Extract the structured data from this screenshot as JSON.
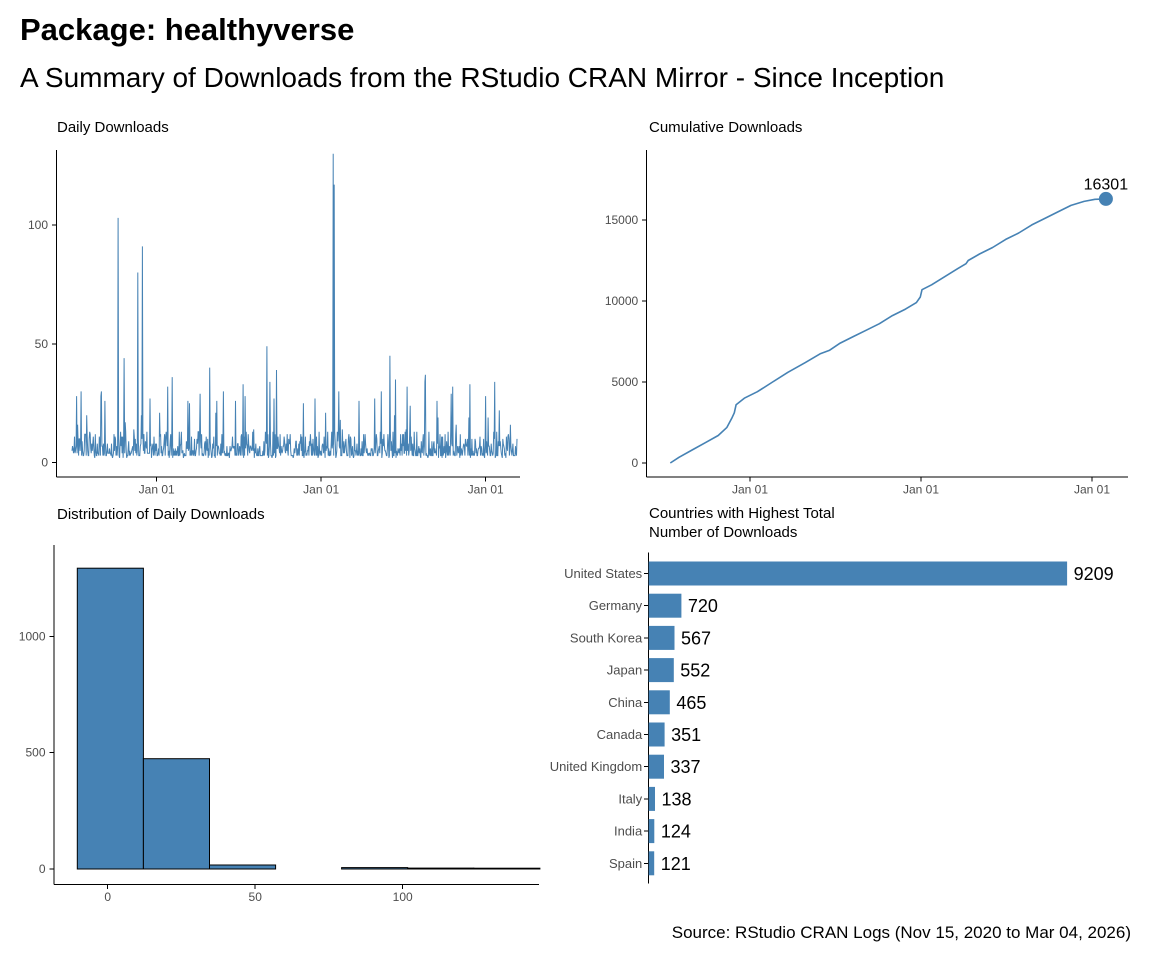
{
  "page": {
    "title": "Package: healthyverse",
    "subtitle": "A Summary of Downloads from the RStudio CRAN Mirror - Since Inception",
    "caption": "Source: RStudio CRAN Logs (Nov 15, 2020 to Mar 04, 2026)",
    "accent_color": "#4682B4",
    "axis_color": "#000000",
    "tick_label_color": "#4d4d4d"
  },
  "chart_data": [
    {
      "id": "daily",
      "type": "line",
      "title": "Daily Downloads",
      "x_tick_labels": [
        "Jan 01",
        "Jan 01",
        "Jan 01"
      ],
      "y_tick_labels": [
        "0",
        "50",
        "100"
      ],
      "y_tick_values": [
        0,
        50,
        100
      ],
      "ylim": [
        0,
        132
      ],
      "series_generator": {
        "n": 880,
        "seed": 42,
        "base_min": 1,
        "typical_range": [
          2,
          16
        ],
        "burst_chance": 0.045,
        "burst_extra": [
          8,
          28
        ]
      },
      "spikes": [
        [
          0.02,
          30
        ],
        [
          0.065,
          28
        ],
        [
          0.103,
          103
        ],
        [
          0.117,
          44
        ],
        [
          0.148,
          80
        ],
        [
          0.158,
          91
        ],
        [
          0.175,
          27
        ],
        [
          0.225,
          36
        ],
        [
          0.26,
          26
        ],
        [
          0.31,
          40
        ],
        [
          0.34,
          30
        ],
        [
          0.384,
          33
        ],
        [
          0.438,
          49
        ],
        [
          0.445,
          34
        ],
        [
          0.46,
          39
        ],
        [
          0.52,
          25
        ],
        [
          0.587,
          130
        ],
        [
          0.589,
          117
        ],
        [
          0.6,
          30
        ],
        [
          0.645,
          26
        ],
        [
          0.68,
          27
        ],
        [
          0.715,
          45
        ],
        [
          0.727,
          35
        ],
        [
          0.76,
          24
        ],
        [
          0.793,
          34
        ],
        [
          0.82,
          26
        ],
        [
          0.856,
          32
        ],
        [
          0.894,
          33
        ],
        [
          0.93,
          28
        ],
        [
          0.96,
          22
        ],
        [
          0.985,
          16
        ]
      ]
    },
    {
      "id": "cumulative",
      "type": "line",
      "title": "Cumulative Downloads",
      "x_tick_labels": [
        "Jan 01",
        "Jan 01",
        "Jan 01"
      ],
      "y_tick_labels": [
        "0",
        "5000",
        "10000",
        "15000"
      ],
      "y_tick_values": [
        0,
        5000,
        10000,
        15000
      ],
      "end_label": "16301",
      "end_value": 16301,
      "points": [
        [
          0.0,
          0
        ],
        [
          0.02,
          350
        ],
        [
          0.05,
          800
        ],
        [
          0.08,
          1250
        ],
        [
          0.11,
          1700
        ],
        [
          0.13,
          2200
        ],
        [
          0.141,
          2750
        ],
        [
          0.147,
          3100
        ],
        [
          0.151,
          3600
        ],
        [
          0.17,
          4000
        ],
        [
          0.2,
          4400
        ],
        [
          0.235,
          5000
        ],
        [
          0.27,
          5600
        ],
        [
          0.31,
          6200
        ],
        [
          0.345,
          6750
        ],
        [
          0.365,
          6950
        ],
        [
          0.39,
          7400
        ],
        [
          0.42,
          7800
        ],
        [
          0.45,
          8200
        ],
        [
          0.48,
          8600
        ],
        [
          0.51,
          9100
        ],
        [
          0.54,
          9500
        ],
        [
          0.565,
          9900
        ],
        [
          0.574,
          10250
        ],
        [
          0.578,
          10700
        ],
        [
          0.6,
          11000
        ],
        [
          0.63,
          11500
        ],
        [
          0.66,
          12000
        ],
        [
          0.679,
          12300
        ],
        [
          0.684,
          12500
        ],
        [
          0.71,
          12900
        ],
        [
          0.74,
          13300
        ],
        [
          0.77,
          13800
        ],
        [
          0.8,
          14200
        ],
        [
          0.83,
          14700
        ],
        [
          0.86,
          15100
        ],
        [
          0.89,
          15500
        ],
        [
          0.92,
          15900
        ],
        [
          0.95,
          16150
        ],
        [
          0.975,
          16280
        ],
        [
          1.0,
          16301
        ]
      ]
    },
    {
      "id": "hist",
      "type": "bar",
      "title": "Distribution of Daily Downloads",
      "x_tick_labels": [
        "0",
        "50",
        "100"
      ],
      "x_tick_values": [
        0,
        50,
        100
      ],
      "y_tick_labels": [
        "0",
        "500",
        "1000"
      ],
      "y_tick_values": [
        0,
        500,
        1000
      ],
      "bins": [
        {
          "from": -10.3,
          "to": 12.1,
          "count": 1293
        },
        {
          "from": 12.1,
          "to": 34.5,
          "count": 474
        },
        {
          "from": 34.5,
          "to": 56.9,
          "count": 17
        },
        {
          "from": 79.3,
          "to": 101.7,
          "count": 6
        },
        {
          "from": 101.7,
          "to": 124.1,
          "count": 4
        },
        {
          "from": 124.1,
          "to": 146.5,
          "count": 2
        }
      ]
    },
    {
      "id": "countries",
      "type": "bar",
      "title": "Countries with Highest Total\nNumber of Downloads",
      "categories": [
        "United States",
        "Germany",
        "South Korea",
        "Japan",
        "China",
        "Canada",
        "United Kingdom",
        "Italy",
        "India",
        "Spain"
      ],
      "values": [
        9209,
        720,
        567,
        552,
        465,
        351,
        337,
        138,
        124,
        121
      ]
    }
  ]
}
